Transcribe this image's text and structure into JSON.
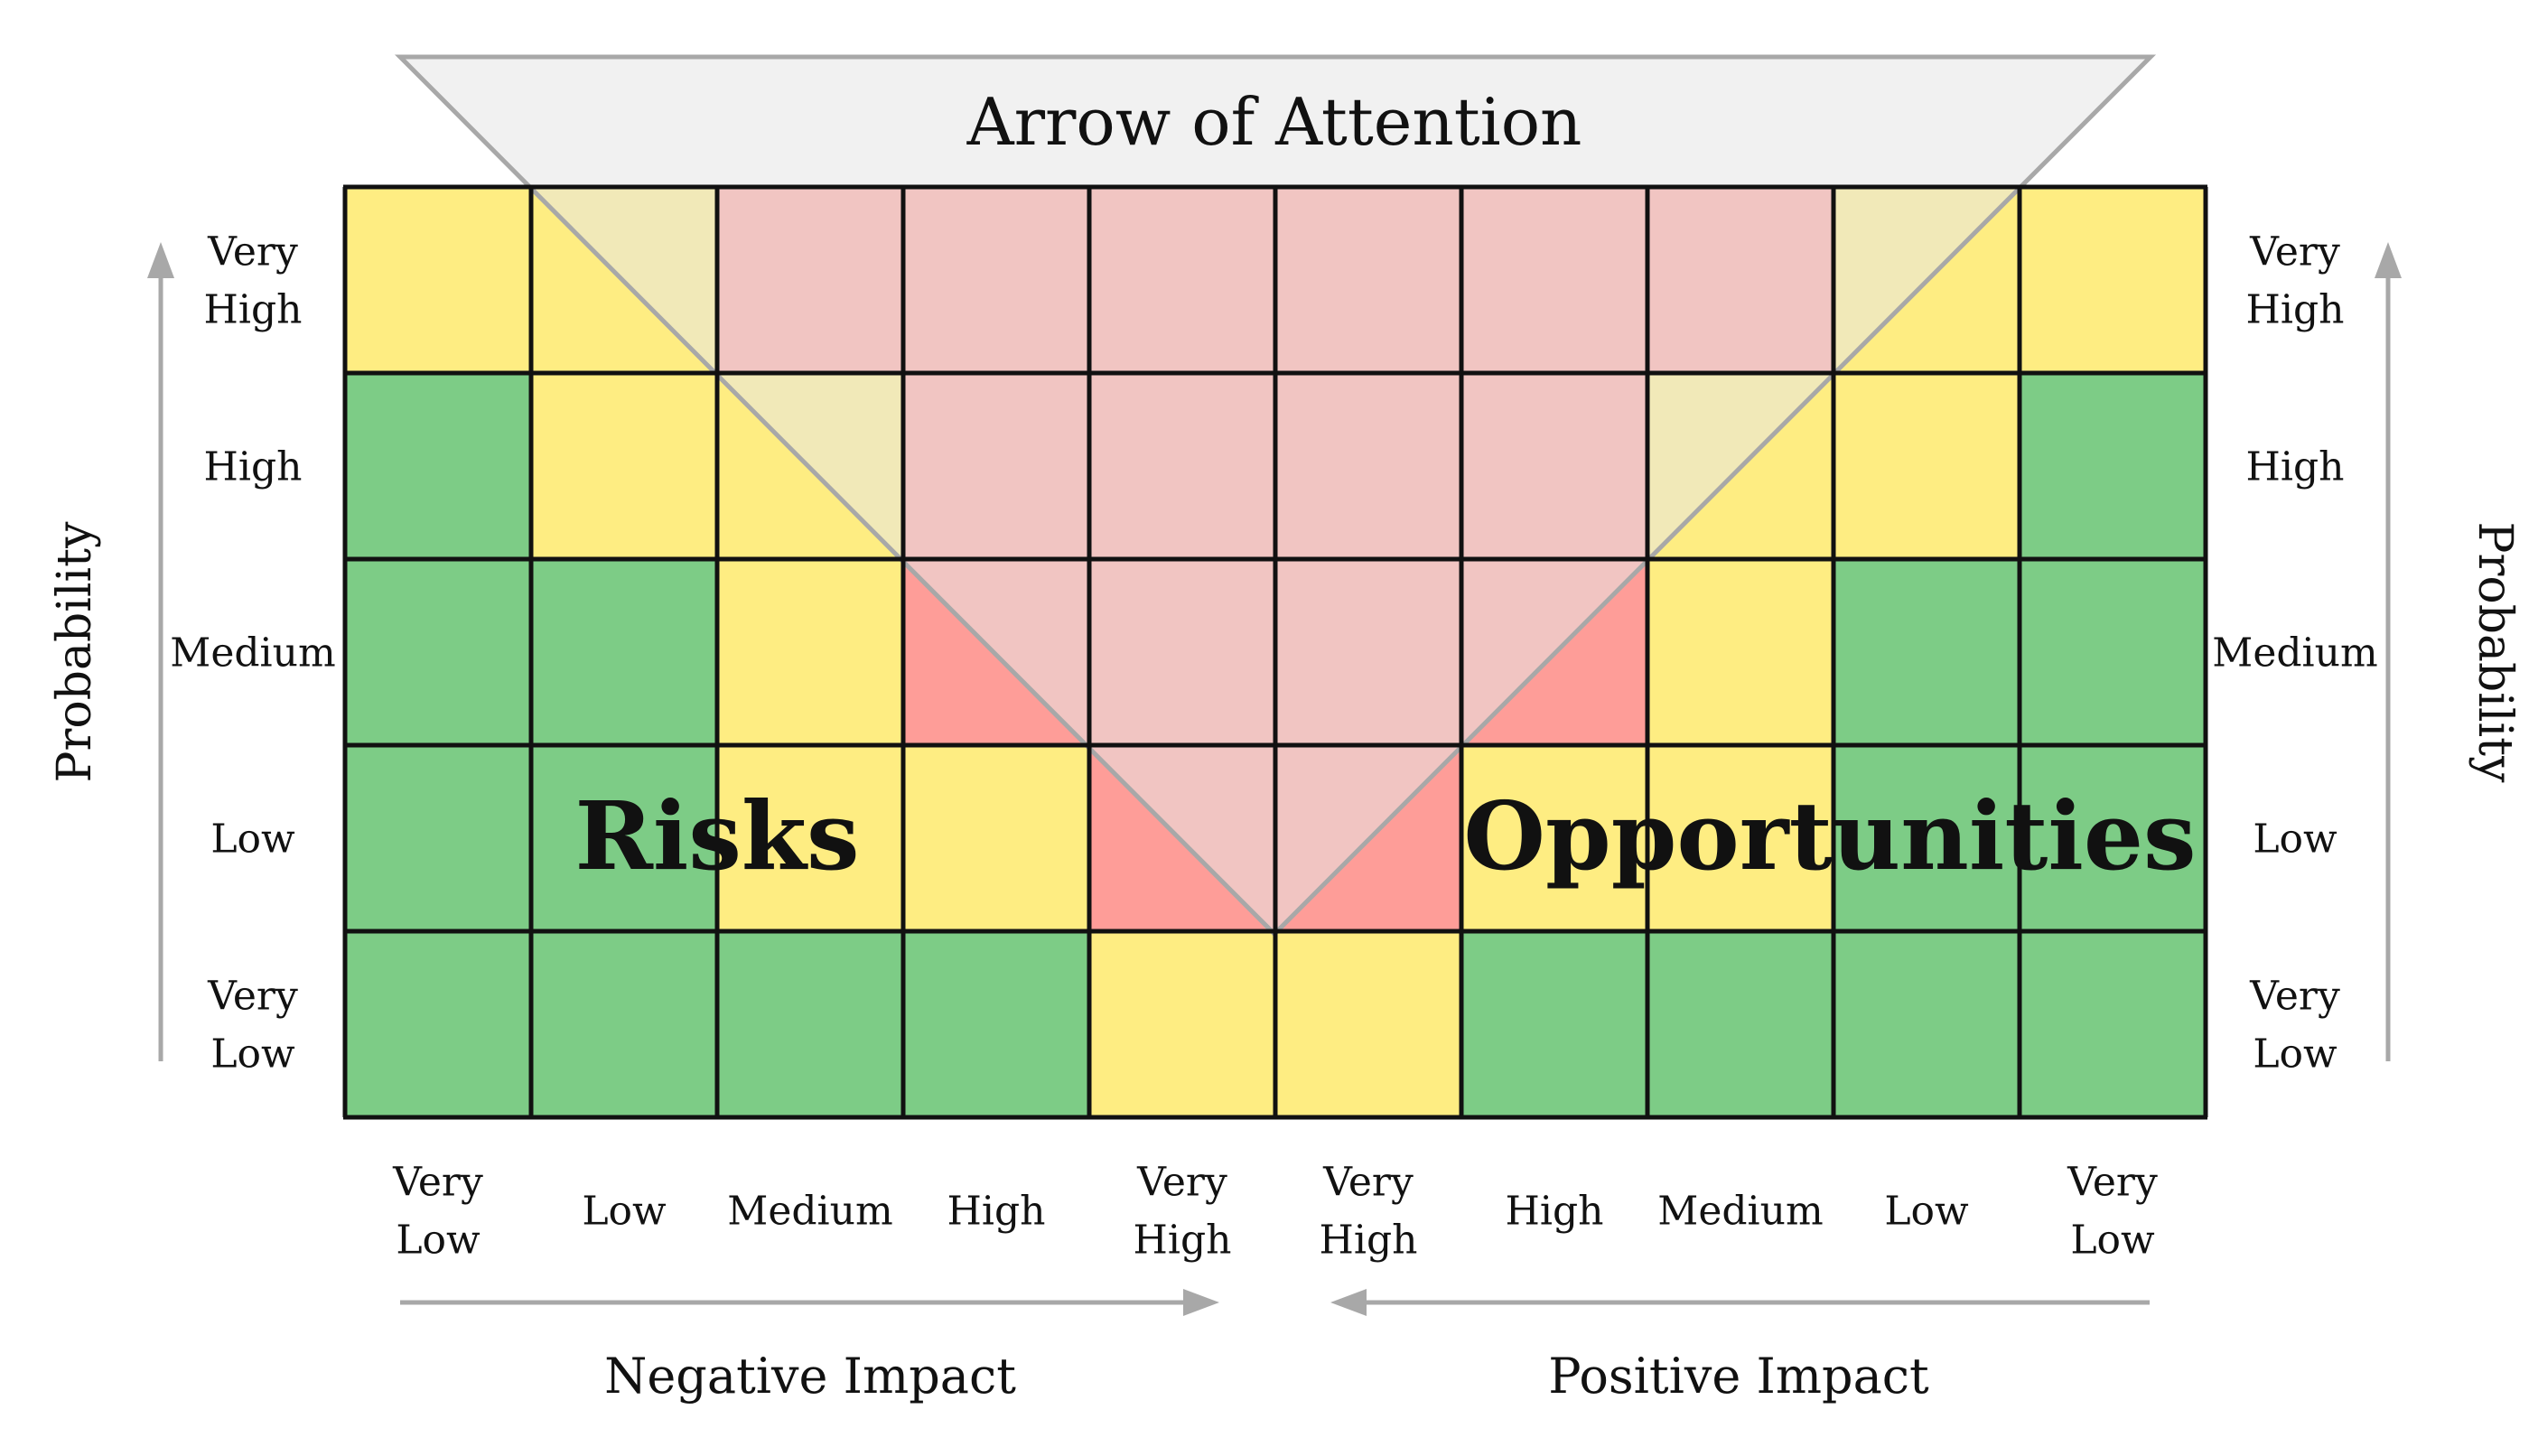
{
  "title": "Arrow of Attention",
  "overlay_labels": {
    "left": "Risks",
    "right": "Opportunities"
  },
  "axis": {
    "probability_label": "Probability",
    "negative_impact_label": "Negative Impact",
    "positive_impact_label": "Positive Impact"
  },
  "probability_levels": [
    [
      "Very",
      "High"
    ],
    [
      "High"
    ],
    [
      "Medium"
    ],
    [
      "Low"
    ],
    [
      "Very",
      "Low"
    ]
  ],
  "impact_levels": [
    [
      "Very",
      "Low"
    ],
    [
      "Low"
    ],
    [
      "Medium"
    ],
    [
      "High"
    ],
    [
      "Very",
      "High"
    ],
    [
      "Very",
      "High"
    ],
    [
      "High"
    ],
    [
      "Medium"
    ],
    [
      "Low"
    ],
    [
      "Very",
      "Low"
    ]
  ],
  "colors": {
    "G": "#7dcc86",
    "Y": "#feed82",
    "R": "#fe9d98",
    "grid_line": "#111111",
    "arrow": "#a8a8a8",
    "triangle_fill": "#e6e6e6"
  },
  "grid": [
    [
      "Y",
      "Y",
      "R",
      "R",
      "R",
      "R",
      "R",
      "R",
      "Y",
      "Y"
    ],
    [
      "G",
      "Y",
      "Y",
      "R",
      "R",
      "R",
      "R",
      "Y",
      "Y",
      "G"
    ],
    [
      "G",
      "G",
      "Y",
      "R",
      "R",
      "R",
      "R",
      "Y",
      "G",
      "G"
    ],
    [
      "G",
      "G",
      "Y",
      "Y",
      "R",
      "R",
      "Y",
      "Y",
      "G",
      "G"
    ],
    [
      "G",
      "G",
      "G",
      "G",
      "Y",
      "Y",
      "G",
      "G",
      "G",
      "G"
    ]
  ]
}
